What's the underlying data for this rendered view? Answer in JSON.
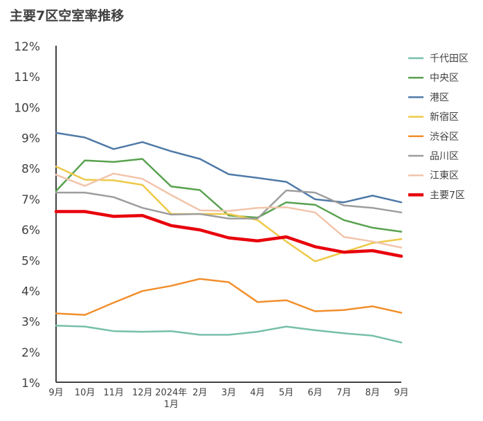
{
  "chart_data": {
    "type": "line",
    "title": "主要7区空室率推移",
    "xlabel": "",
    "ylabel": "",
    "categories": [
      "9月",
      "10月",
      "11月",
      "12月",
      "2024年\n1月",
      "2月",
      "3月",
      "4月",
      "5月",
      "6月",
      "7月",
      "8月",
      "9月"
    ],
    "y_ticks": [
      "1%",
      "2%",
      "3%",
      "4%",
      "5%",
      "6%",
      "7%",
      "8%",
      "9%",
      "10%",
      "11%",
      "12%"
    ],
    "ylim": [
      1,
      12
    ],
    "grid": false,
    "legend_position": "right",
    "series": [
      {
        "name": "千代田区",
        "color": "#76bfaa",
        "width": 2.5,
        "values": [
          2.85,
          2.82,
          2.67,
          2.65,
          2.67,
          2.55,
          2.55,
          2.65,
          2.82,
          2.7,
          2.6,
          2.52,
          2.3
        ]
      },
      {
        "name": "中央区",
        "color": "#58a14e",
        "width": 2.5,
        "values": [
          7.25,
          8.25,
          8.2,
          8.3,
          7.4,
          7.28,
          6.45,
          6.38,
          6.88,
          6.8,
          6.3,
          6.05,
          5.92
        ]
      },
      {
        "name": "港区",
        "color": "#4e79a7",
        "width": 2.5,
        "values": [
          9.15,
          9.0,
          8.62,
          8.85,
          8.55,
          8.3,
          7.8,
          7.68,
          7.55,
          6.98,
          6.88,
          7.1,
          6.88
        ]
      },
      {
        "name": "新宿区",
        "color": "#edc948",
        "width": 2.5,
        "values": [
          8.05,
          7.62,
          7.6,
          7.45,
          6.5,
          6.5,
          6.5,
          6.3,
          5.6,
          4.95,
          5.25,
          5.55,
          5.68
        ]
      },
      {
        "name": "渋谷区",
        "color": "#f28e2b",
        "width": 2.5,
        "values": [
          3.25,
          3.2,
          3.6,
          3.98,
          4.15,
          4.38,
          4.27,
          3.62,
          3.68,
          3.32,
          3.36,
          3.48,
          3.27
        ]
      },
      {
        "name": "品川区",
        "color": "#9d9d9d",
        "width": 2.5,
        "values": [
          7.2,
          7.2,
          7.05,
          6.7,
          6.48,
          6.5,
          6.35,
          6.35,
          7.27,
          7.2,
          6.78,
          6.7,
          6.55
        ]
      },
      {
        "name": "江東区",
        "color": "#f2c4aa",
        "width": 2.5,
        "values": [
          7.78,
          7.42,
          7.82,
          7.65,
          7.12,
          6.62,
          6.6,
          6.7,
          6.72,
          6.55,
          5.75,
          5.6,
          5.4
        ]
      },
      {
        "name": "主要7区",
        "color": "#e8000b",
        "width": 4.5,
        "values": [
          6.58,
          6.58,
          6.42,
          6.45,
          6.12,
          5.98,
          5.72,
          5.62,
          5.75,
          5.43,
          5.25,
          5.3,
          5.12
        ]
      }
    ]
  }
}
